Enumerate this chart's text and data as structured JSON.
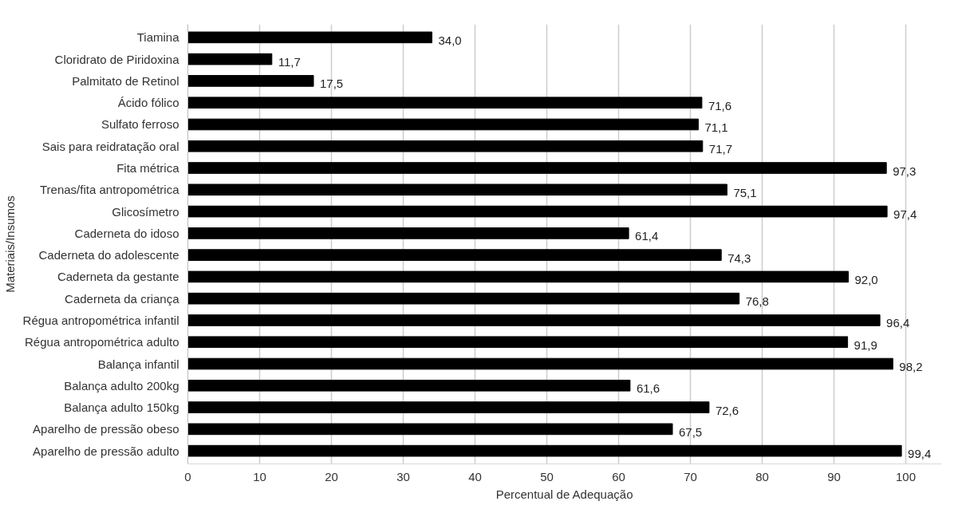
{
  "chart_data": {
    "type": "bar",
    "orientation": "horizontal",
    "xlabel": "Percentual de Adequação",
    "ylabel": "Materiais/Insumos",
    "categories": [
      "Tiamina",
      "Cloridrato de Piridoxina",
      "Palmitato de Retinol",
      "Ácido fólico",
      "Sulfato ferroso",
      "Sais para reidratação oral",
      "Fita métrica",
      "Trenas/fita antropométrica",
      "Glicosímetro",
      "Caderneta do idoso",
      "Caderneta do adolescente",
      "Caderneta da gestante",
      "Caderneta da criança",
      "Régua antropométrica infantil",
      "Régua antropométrica adulto",
      "Balança infantil",
      "Balança adulto 200kg",
      "Balança adulto 150kg",
      "Aparelho de pressão obeso",
      "Aparelho de pressão adulto"
    ],
    "values": [
      34.0,
      11.7,
      17.5,
      71.6,
      71.1,
      71.7,
      97.3,
      75.1,
      97.4,
      61.4,
      74.3,
      92.0,
      76.8,
      96.4,
      91.9,
      98.2,
      61.6,
      72.6,
      67.5,
      99.4
    ],
    "value_labels": [
      "34,0",
      "11,7",
      "17,5",
      "71,6",
      "71,1",
      "71,7",
      "97,3",
      "75,1",
      "97,4",
      "61,4",
      "74,3",
      "92,0",
      "76,8",
      "96,4",
      "91,9",
      "98,2",
      "61,6",
      "72,6",
      "67,5",
      "99,4"
    ],
    "color": "#000000",
    "xlim": [
      0,
      105
    ],
    "xticks": [
      0,
      10,
      20,
      30,
      40,
      50,
      60,
      70,
      80,
      90,
      100
    ],
    "grid": "x"
  }
}
